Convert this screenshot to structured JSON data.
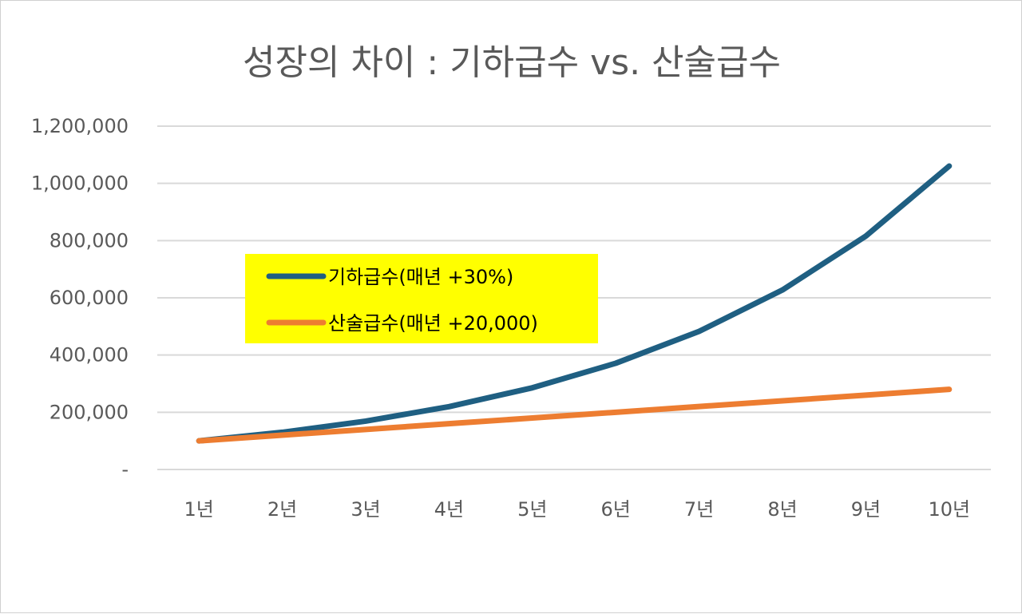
{
  "chart_data": {
    "type": "line",
    "title": "성장의 차이 : 기하급수 vs. 산술급수",
    "categories": [
      "1년",
      "2년",
      "3년",
      "4년",
      "5년",
      "6년",
      "7년",
      "8년",
      "9년",
      "10년"
    ],
    "series": [
      {
        "name": "기하급수(매년 +30%)",
        "color": "#1f5f82",
        "values": [
          100000,
          130000,
          169000,
          219700,
          285610,
          371293,
          482681,
          627485,
          815731,
          1060450
        ]
      },
      {
        "name": "산술급수(매년 +20,000)",
        "color": "#ed7d31",
        "values": [
          100000,
          120000,
          140000,
          160000,
          180000,
          200000,
          220000,
          240000,
          260000,
          280000
        ]
      }
    ],
    "ylim": [
      0,
      1200000
    ],
    "yticks": [
      0,
      200000,
      400000,
      600000,
      800000,
      1000000,
      1200000
    ],
    "ytick_labels": [
      "-",
      "200,000",
      "400,000",
      "600,000",
      "800,000",
      "1,000,000",
      "1,200,000"
    ],
    "grid": true,
    "legend": {
      "placement": "upper-left inside plot",
      "background": "#ffff00"
    },
    "gridline_color": "#d9d9d9"
  }
}
